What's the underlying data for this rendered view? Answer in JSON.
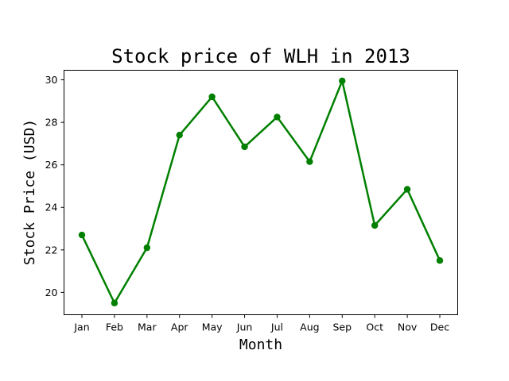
{
  "chart_data": {
    "type": "line",
    "title": "Stock price of WLH in 2013",
    "xlabel": "Month",
    "ylabel": "Stock Price (USD)",
    "categories": [
      "Jan",
      "Feb",
      "Mar",
      "Apr",
      "May",
      "Jun",
      "Jul",
      "Aug",
      "Sep",
      "Oct",
      "Nov",
      "Dec"
    ],
    "series": [
      {
        "values": [
          22.7,
          19.5,
          22.1,
          27.4,
          29.2,
          26.85,
          28.25,
          26.15,
          29.95,
          23.15,
          24.85,
          21.5
        ]
      }
    ],
    "ylim": [
      18.95,
      30.45
    ],
    "yticks": [
      20,
      22,
      24,
      26,
      28,
      30
    ],
    "grid": false,
    "legend": "none",
    "color": "#008000",
    "marker": "circle"
  }
}
